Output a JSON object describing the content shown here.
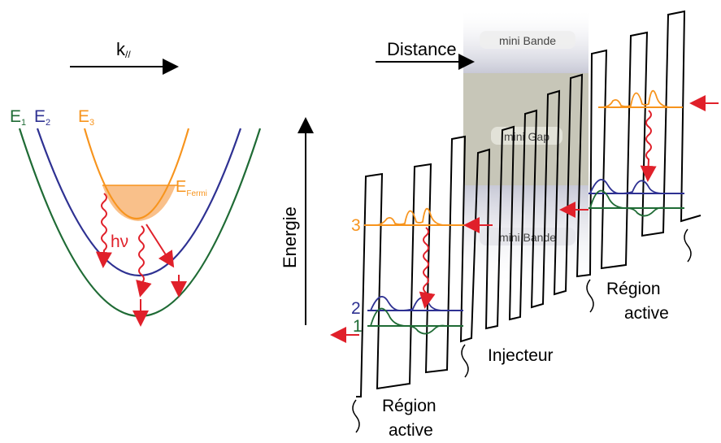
{
  "left_panel": {
    "k_axis_label": "k",
    "k_axis_subscript": "//",
    "band_e1": "E",
    "band_e1_sub": "1",
    "band_e2": "E",
    "band_e2_sub": "2",
    "band_e3": "E",
    "band_e3_sub": "3",
    "fermi_label": "E",
    "fermi_sub": "Fermi",
    "photon_label": "hν"
  },
  "right_panel": {
    "distance_label": "Distance",
    "energy_label": "Energie",
    "mini_band_top": "mini Bande",
    "mini_gap": "mini Gap",
    "mini_band_bottom": "mini Bande",
    "level_3": "3",
    "level_2": "2",
    "level_1": "1",
    "region_active_left_line1": "Région",
    "region_active_left_line2": "active",
    "injector_label": "Injecteur",
    "region_active_right_line1": "Région",
    "region_active_right_line2": "active"
  },
  "colors": {
    "band_e1": "#1f6b35",
    "band_e2": "#2e3192",
    "band_e3": "#f7941d",
    "fermi_fill": "#f9c08a",
    "arrow_red": "#e0202a",
    "minigap_gray": "#c7c6b8",
    "miniband_gray": "#d9d9e0"
  }
}
